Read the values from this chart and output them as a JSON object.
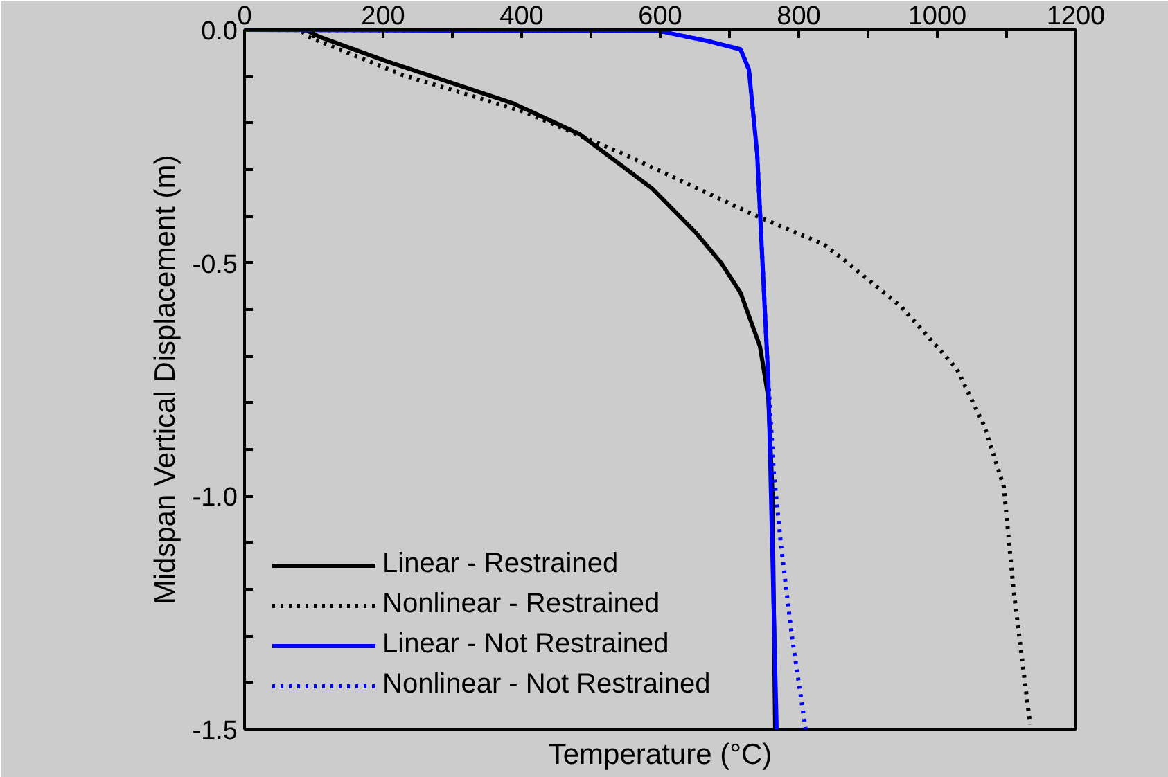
{
  "chart_data": {
    "type": "line",
    "xlabel": "Temperature (°C)",
    "ylabel": "Midspan Vertical Displacement (m)",
    "xlim": [
      0,
      1200
    ],
    "ylim": [
      -1.5,
      0
    ],
    "xticks": [
      0,
      {
        "value": 100,
        "label": null
      },
      200,
      {
        "value": 300,
        "label": null
      },
      400,
      {
        "value": 500,
        "label": null
      },
      600,
      {
        "value": 700,
        "label": null
      },
      800,
      {
        "value": 900,
        "label": null
      },
      1000,
      {
        "value": 1100,
        "label": null
      },
      1200
    ],
    "yticks": [
      {
        "value": 0,
        "label": "0.0"
      },
      {
        "value": -0.1,
        "label": null
      },
      {
        "value": -0.2,
        "label": null
      },
      {
        "value": -0.3,
        "label": null
      },
      {
        "value": -0.4,
        "label": null
      },
      {
        "value": -0.5,
        "label": "-0.5"
      },
      {
        "value": -0.6,
        "label": null
      },
      {
        "value": -0.7,
        "label": null
      },
      {
        "value": -0.8,
        "label": null
      },
      {
        "value": -0.9,
        "label": null
      },
      {
        "value": -1.0,
        "label": "-1.0"
      },
      {
        "value": -1.1,
        "label": null
      },
      {
        "value": -1.2,
        "label": null
      },
      {
        "value": -1.3,
        "label": null
      },
      {
        "value": -1.4,
        "label": null
      },
      {
        "value": -1.5,
        "label": "-1.5"
      }
    ],
    "grid": false,
    "legend": "bottom left",
    "series": [
      {
        "name": "Linear - Restrained",
        "color": "#000000",
        "line_style": "solid",
        "x": [
          88,
          108,
          204,
          388,
          484,
          588,
          652,
          688,
          716,
          744,
          756,
          762,
          766
        ],
        "values": [
          0,
          -0.015,
          -0.067,
          -0.158,
          -0.224,
          -0.34,
          -0.436,
          -0.5,
          -0.564,
          -0.679,
          -0.788,
          -0.994,
          -1.5
        ]
      },
      {
        "name": "Nonlinear - Restrained",
        "color": "#000000",
        "line_style": "dotted",
        "x": [
          0,
          80,
          92,
          228,
          404,
          548,
          740,
          836,
          868,
          948,
          1028,
          1068,
          1096,
          1110,
          1134
        ],
        "values": [
          0,
          0,
          -0.015,
          -0.097,
          -0.176,
          -0.267,
          -0.4,
          -0.46,
          -0.497,
          -0.594,
          -0.727,
          -0.85,
          -0.98,
          -1.2,
          -1.49
        ]
      },
      {
        "name": "Linear - Not Restrained",
        "color": "#0000ff",
        "line_style": "solid",
        "x": [
          0,
          600,
          668,
          716,
          728,
          740,
          748,
          756,
          768
        ],
        "values": [
          0,
          -0.003,
          -0.024,
          -0.042,
          -0.085,
          -0.267,
          -0.51,
          -0.75,
          -1.5
        ]
      },
      {
        "name": "Nonlinear - Not Restrained",
        "color": "#0000ff",
        "line_style": "dotted",
        "x": [
          0,
          600,
          668,
          716,
          728,
          740,
          748,
          756,
          764,
          774,
          790,
          810
        ],
        "values": [
          0,
          -0.003,
          -0.024,
          -0.042,
          -0.085,
          -0.267,
          -0.51,
          -0.75,
          -0.95,
          -1.1,
          -1.3,
          -1.5
        ]
      }
    ]
  }
}
